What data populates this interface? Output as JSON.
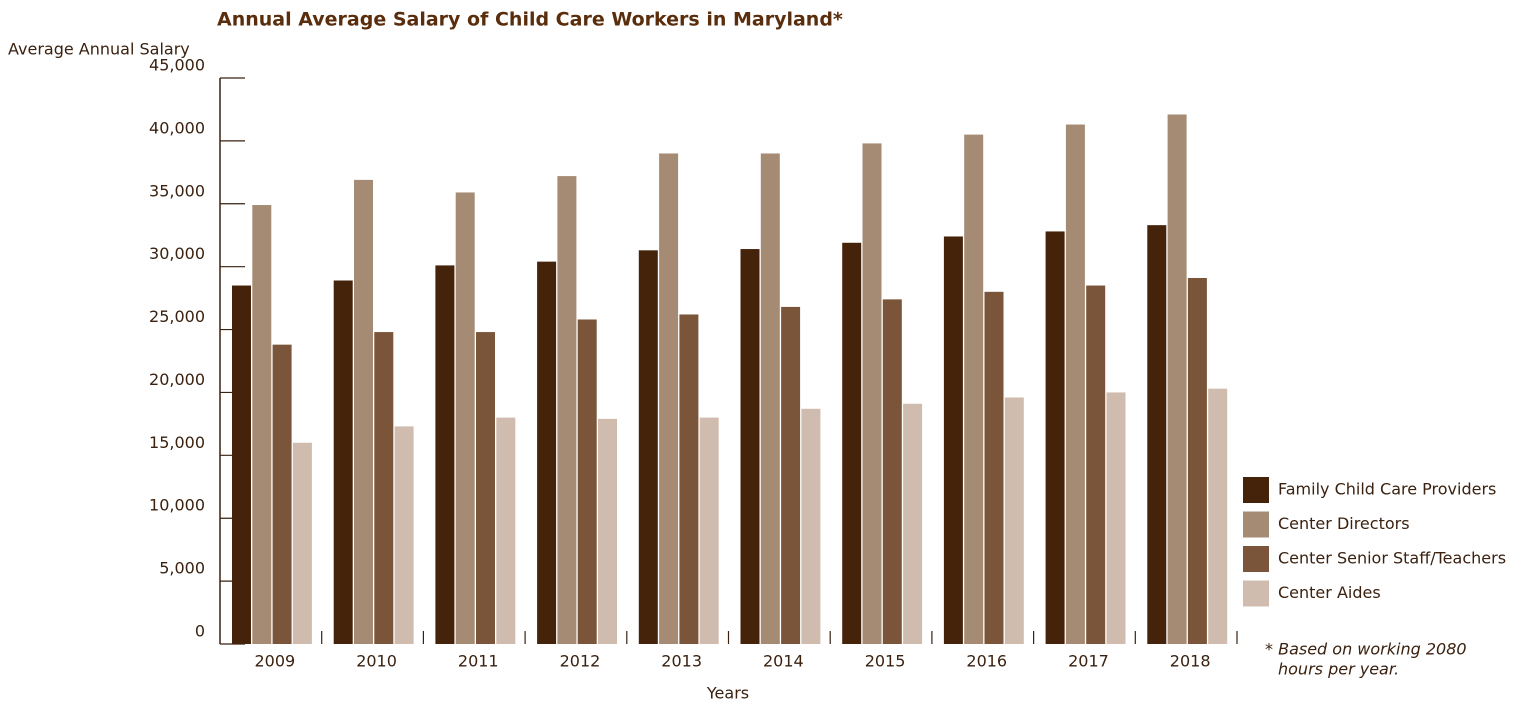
{
  "chart_data": {
    "type": "bar",
    "title": "Annual Average Salary of Child Care Workers in Maryland*",
    "y_label": "Average Annual Salary",
    "x_label": "Years",
    "categories": [
      "2009",
      "2010",
      "2011",
      "2012",
      "2013",
      "2014",
      "2015",
      "2016",
      "2017",
      "2018"
    ],
    "series": [
      {
        "name": "Family Child Care Providers",
        "color": "#45220a",
        "values": [
          28500,
          28900,
          30100,
          30400,
          31300,
          31400,
          31900,
          32400,
          32800,
          33300
        ]
      },
      {
        "name": "Center Directors",
        "color": "#a58b74",
        "values": [
          34900,
          36900,
          35900,
          37200,
          39000,
          39000,
          39800,
          40500,
          41300,
          42100
        ]
      },
      {
        "name": "Center Senior Staff/Teachers",
        "color": "#7a5539",
        "values": [
          23800,
          24800,
          24800,
          25800,
          26200,
          26800,
          27400,
          28000,
          28500,
          29100
        ]
      },
      {
        "name": "Center Aides",
        "color": "#cfbcae",
        "values": [
          16000,
          17300,
          18000,
          17900,
          18000,
          18700,
          19100,
          19600,
          20000,
          20300
        ]
      }
    ],
    "ylim": [
      0,
      45000
    ],
    "yticks": [
      0,
      {
        "value": 5000,
        "label": "5,000"
      },
      {
        "value": 10000,
        "label": "10,000"
      },
      {
        "value": 15000,
        "label": "15,000"
      },
      {
        "value": 20000,
        "label": "20,000"
      },
      {
        "value": 25000,
        "label": "25,000"
      },
      {
        "value": 30000,
        "label": "30,000"
      },
      {
        "value": 35000,
        "label": "35,000"
      },
      {
        "value": 40000,
        "label": "40,000"
      },
      {
        "value": 45000,
        "label": "45,000"
      }
    ],
    "footnote": [
      "* Based on working 2080",
      "hours per year."
    ]
  }
}
